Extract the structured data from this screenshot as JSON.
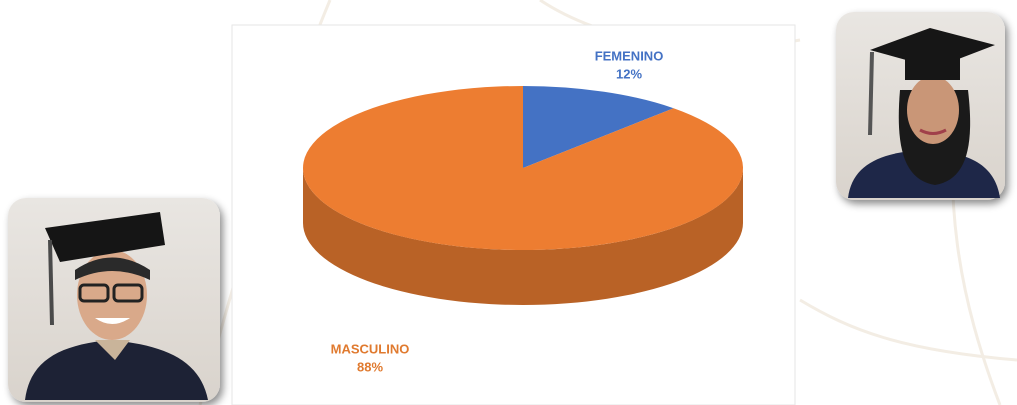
{
  "chart_data": {
    "type": "pie",
    "categories": [
      "FEMENINO",
      "MASCULINO"
    ],
    "values": [
      12,
      88
    ],
    "value_labels": [
      "12%",
      "88%"
    ],
    "colors": [
      "#4472c4",
      "#ed7d31"
    ]
  }
}
